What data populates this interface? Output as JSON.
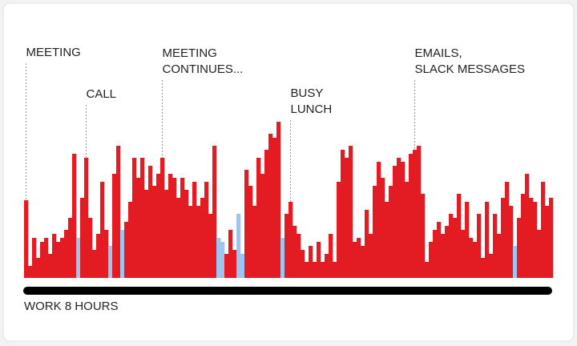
{
  "chart_data": {
    "type": "bar",
    "x_label": "WORK 8 HOURS",
    "ylim": [
      0,
      200
    ],
    "values": [
      97,
      15,
      50,
      25,
      45,
      50,
      30,
      55,
      45,
      50,
      60,
      75,
      155,
      50,
      100,
      150,
      75,
      35,
      55,
      120,
      60,
      40,
      130,
      165,
      60,
      70,
      95,
      150,
      125,
      150,
      110,
      140,
      115,
      130,
      150,
      110,
      130,
      125,
      100,
      125,
      110,
      90,
      120,
      90,
      100,
      120,
      80,
      165,
      50,
      45,
      30,
      60,
      35,
      80,
      30,
      135,
      115,
      90,
      150,
      130,
      160,
      180,
      175,
      195,
      50,
      80,
      95,
      65,
      55,
      35,
      20,
      40,
      20,
      45,
      20,
      30,
      55,
      20,
      120,
      160,
      150,
      165,
      45,
      50,
      40,
      85,
      55,
      115,
      145,
      125,
      95,
      115,
      140,
      150,
      145,
      120,
      155,
      160,
      165,
      105,
      20,
      45,
      60,
      70,
      55,
      65,
      80,
      75,
      105,
      60,
      95,
      50,
      45,
      80,
      25,
      95,
      30,
      80,
      55,
      100,
      120,
      90,
      40,
      75,
      105,
      130,
      100,
      95,
      60,
      120,
      90,
      100
    ],
    "colors": [
      "#e31b23",
      "#e31b23",
      "#e31b23",
      "#e31b23",
      "#e31b23",
      "#e31b23",
      "#e31b23",
      "#e31b23",
      "#e31b23",
      "#e31b23",
      "#e31b23",
      "#e31b23",
      "#e31b23",
      "#9ec5f0",
      "#e31b23",
      "#e31b23",
      "#e31b23",
      "#e31b23",
      "#e31b23",
      "#e31b23",
      "#e31b23",
      "#9ec5f0",
      "#e31b23",
      "#e31b23",
      "#9ec5f0",
      "#e31b23",
      "#e31b23",
      "#e31b23",
      "#e31b23",
      "#e31b23",
      "#e31b23",
      "#e31b23",
      "#e31b23",
      "#e31b23",
      "#e31b23",
      "#e31b23",
      "#e31b23",
      "#e31b23",
      "#e31b23",
      "#e31b23",
      "#e31b23",
      "#e31b23",
      "#e31b23",
      "#e31b23",
      "#e31b23",
      "#e31b23",
      "#e31b23",
      "#e31b23",
      "#9ec5f0",
      "#9ec5f0",
      "#e31b23",
      "#e31b23",
      "#e31b23",
      "#9ec5f0",
      "#9ec5f0",
      "#e31b23",
      "#e31b23",
      "#e31b23",
      "#e31b23",
      "#e31b23",
      "#e31b23",
      "#e31b23",
      "#e31b23",
      "#e31b23",
      "#9ec5f0",
      "#e31b23",
      "#e31b23",
      "#e31b23",
      "#e31b23",
      "#e31b23",
      "#e31b23",
      "#e31b23",
      "#e31b23",
      "#e31b23",
      "#e31b23",
      "#e31b23",
      "#e31b23",
      "#e31b23",
      "#e31b23",
      "#e31b23",
      "#e31b23",
      "#e31b23",
      "#e31b23",
      "#e31b23",
      "#e31b23",
      "#e31b23",
      "#e31b23",
      "#e31b23",
      "#e31b23",
      "#e31b23",
      "#e31b23",
      "#e31b23",
      "#e31b23",
      "#e31b23",
      "#e31b23",
      "#e31b23",
      "#e31b23",
      "#e31b23",
      "#e31b23",
      "#e31b23",
      "#e31b23",
      "#e31b23",
      "#e31b23",
      "#e31b23",
      "#e31b23",
      "#e31b23",
      "#e31b23",
      "#e31b23",
      "#e31b23",
      "#e31b23",
      "#e31b23",
      "#e31b23",
      "#e31b23",
      "#e31b23",
      "#e31b23",
      "#e31b23",
      "#e31b23",
      "#e31b23",
      "#e31b23",
      "#e31b23",
      "#e31b23",
      "#e31b23",
      "#9ec5f0",
      "#e31b23",
      "#e31b23",
      "#e31b23",
      "#e31b23",
      "#e31b23",
      "#e31b23",
      "#e31b23",
      "#e31b23",
      "#e31b23"
    ],
    "annotations": [
      {
        "lines": [
          "MEETING"
        ]
      },
      {
        "lines": [
          "CALL"
        ]
      },
      {
        "lines": [
          "MEETING",
          "CONTINUES..."
        ]
      },
      {
        "lines": [
          "BUSY",
          "LUNCH"
        ]
      },
      {
        "lines": [
          "EMAILS,",
          "SLACK MESSAGES"
        ]
      }
    ]
  }
}
